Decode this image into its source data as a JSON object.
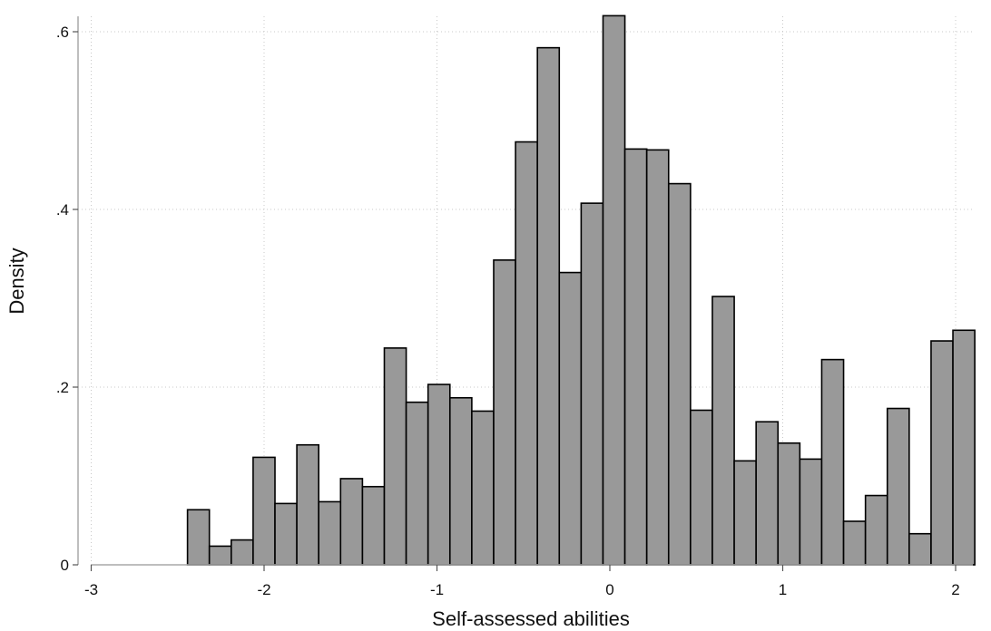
{
  "chart_data": {
    "type": "bar",
    "xlabel": "Self-assessed abilities",
    "ylabel": "Density",
    "xlim": [
      -3,
      2.1
    ],
    "ylim": [
      0,
      0.6
    ],
    "x_ticks": [
      -3,
      -2,
      -1,
      0,
      1,
      2
    ],
    "x_tick_labels": [
      "-3",
      "-2",
      "-1",
      "0",
      "1",
      "2"
    ],
    "y_ticks": [
      0,
      0.2,
      0.4,
      0.6
    ],
    "y_tick_labels": [
      "0",
      ".2",
      ".4",
      ".6"
    ],
    "grid": "dotted on major ticks",
    "bar_color": "#999999",
    "bar_edge_color": "#000000",
    "bin_start": -2.443,
    "bin_width": 0.1265,
    "values": [
      0.062,
      0.021,
      0.028,
      0.121,
      0.069,
      0.135,
      0.071,
      0.097,
      0.088,
      0.244,
      0.183,
      0.203,
      0.188,
      0.173,
      0.343,
      0.476,
      0.582,
      0.329,
      0.407,
      0.618,
      0.468,
      0.467,
      0.429,
      0.174,
      0.302,
      0.117,
      0.161,
      0.137,
      0.119,
      0.231,
      0.049,
      0.078,
      0.176,
      0.035,
      0.252,
      0.264
    ]
  }
}
